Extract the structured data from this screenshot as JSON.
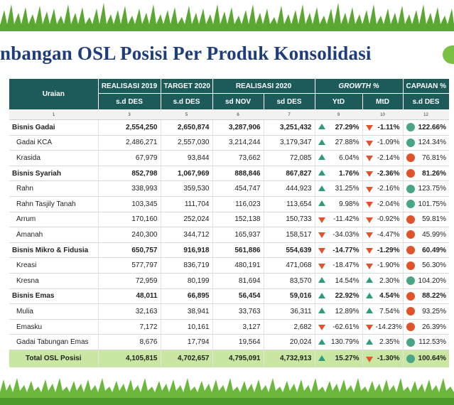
{
  "title": "nbangan OSL Posisi Per Produk Konsolidasi",
  "colors": {
    "header_bg": "#1d5b5b",
    "total_bg": "#c9e7a3",
    "up": "#2e9c7c",
    "down": "#e0532d",
    "grass": "#7ac143"
  },
  "header": {
    "uraian": "Uraian",
    "real2019": "REALISASI 2019",
    "target2020": "TARGET 2020",
    "real2020": "REALISASI  2020",
    "growth": "GROWTH %",
    "capaian": "CAPAIAN %",
    "sd_des_1": "s.d DES",
    "sd_des_2": "s.d DES",
    "sd_nov": "sd NOV",
    "sd_des_3": "sd DES",
    "ytd": "YtD",
    "mtd": "MtD",
    "sd_des_4": "s.d DES"
  },
  "index_row": [
    "1",
    "3",
    "5",
    "6",
    "7",
    "9",
    "10",
    "12"
  ],
  "rows": [
    {
      "name": "Bisnis Gadai",
      "type": "group",
      "r2019": "2,554,250",
      "t2020": "2,650,874",
      "nov": "3,287,906",
      "des": "3,251,432",
      "ytd": "27.29%",
      "ytd_dir": "up",
      "mtd": "-1.11%",
      "mtd_dir": "down",
      "cap": "122.66%",
      "cap_status": "green"
    },
    {
      "name": "Gadai KCA",
      "type": "sub",
      "r2019": "2,486,271",
      "t2020": "2,557,030",
      "nov": "3,214,244",
      "des": "3,179,347",
      "ytd": "27.88%",
      "ytd_dir": "up",
      "mtd": "-1.09%",
      "mtd_dir": "down",
      "cap": "124.34%",
      "cap_status": "green"
    },
    {
      "name": "Krasida",
      "type": "sub",
      "r2019": "67,979",
      "t2020": "93,844",
      "nov": "73,662",
      "des": "72,085",
      "ytd": "6.04%",
      "ytd_dir": "up",
      "mtd": "-2.14%",
      "mtd_dir": "down",
      "cap": "76.81%",
      "cap_status": "red"
    },
    {
      "name": "Bisnis Syariah",
      "type": "group",
      "r2019": "852,798",
      "t2020": "1,067,969",
      "nov": "888,846",
      "des": "867,827",
      "ytd": "1.76%",
      "ytd_dir": "up",
      "mtd": "-2.36%",
      "mtd_dir": "down",
      "cap": "81.26%",
      "cap_status": "red"
    },
    {
      "name": "Rahn",
      "type": "sub",
      "r2019": "338,993",
      "t2020": "359,530",
      "nov": "454,747",
      "des": "444,923",
      "ytd": "31.25%",
      "ytd_dir": "up",
      "mtd": "-2.16%",
      "mtd_dir": "down",
      "cap": "123.75%",
      "cap_status": "green"
    },
    {
      "name": "Rahn Tasjily Tanah",
      "type": "sub",
      "r2019": "103,345",
      "t2020": "111,704",
      "nov": "116,023",
      "des": "113,654",
      "ytd": "9.98%",
      "ytd_dir": "up",
      "mtd": "-2.04%",
      "mtd_dir": "down",
      "cap": "101.75%",
      "cap_status": "green"
    },
    {
      "name": "Arrum",
      "type": "sub",
      "r2019": "170,160",
      "t2020": "252,024",
      "nov": "152,138",
      "des": "150,733",
      "ytd": "-11.42%",
      "ytd_dir": "down",
      "mtd": "-0.92%",
      "mtd_dir": "down",
      "cap": "59.81%",
      "cap_status": "red"
    },
    {
      "name": "Amanah",
      "type": "sub",
      "r2019": "240,300",
      "t2020": "344,712",
      "nov": "165,937",
      "des": "158,517",
      "ytd": "-34.03%",
      "ytd_dir": "down",
      "mtd": "-4.47%",
      "mtd_dir": "down",
      "cap": "45.99%",
      "cap_status": "red"
    },
    {
      "name": "Bisnis Mikro & Fidusia",
      "type": "group",
      "r2019": "650,757",
      "t2020": "916,918",
      "nov": "561,886",
      "des": "554,639",
      "ytd": "-14.77%",
      "ytd_dir": "down",
      "mtd": "-1.29%",
      "mtd_dir": "down",
      "cap": "60.49%",
      "cap_status": "red"
    },
    {
      "name": "Kreasi",
      "type": "sub",
      "r2019": "577,797",
      "t2020": "836,719",
      "nov": "480,191",
      "des": "471,068",
      "ytd": "-18.47%",
      "ytd_dir": "down",
      "mtd": "-1.90%",
      "mtd_dir": "down",
      "cap": "56.30%",
      "cap_status": "red"
    },
    {
      "name": "Kresna",
      "type": "sub",
      "r2019": "72,959",
      "t2020": "80,199",
      "nov": "81,694",
      "des": "83,570",
      "ytd": "14.54%",
      "ytd_dir": "up",
      "mtd": "2.30%",
      "mtd_dir": "up",
      "cap": "104.20%",
      "cap_status": "green"
    },
    {
      "name": "Bisnis Emas",
      "type": "group",
      "r2019": "48,011",
      "t2020": "66,895",
      "nov": "56,454",
      "des": "59,016",
      "ytd": "22.92%",
      "ytd_dir": "up",
      "mtd": "4.54%",
      "mtd_dir": "up",
      "cap": "88.22%",
      "cap_status": "red"
    },
    {
      "name": "Mulia",
      "type": "sub",
      "r2019": "32,163",
      "t2020": "38,941",
      "nov": "33,763",
      "des": "36,311",
      "ytd": "12.89%",
      "ytd_dir": "up",
      "mtd": "7.54%",
      "mtd_dir": "up",
      "cap": "93.25%",
      "cap_status": "red"
    },
    {
      "name": "Emasku",
      "type": "sub",
      "r2019": "7,172",
      "t2020": "10,161",
      "nov": "3,127",
      "des": "2,682",
      "ytd": "-62.61%",
      "ytd_dir": "down",
      "mtd": "-14.23%",
      "mtd_dir": "down",
      "cap": "26.39%",
      "cap_status": "red"
    },
    {
      "name": "Gadai Tabungan Emas",
      "type": "sub",
      "r2019": "8,676",
      "t2020": "17,794",
      "nov": "19,564",
      "des": "20,024",
      "ytd": "130.79%",
      "ytd_dir": "up",
      "mtd": "2.35%",
      "mtd_dir": "up",
      "cap": "112.53%",
      "cap_status": "green"
    },
    {
      "name": "Total OSL Posisi",
      "type": "total",
      "r2019": "4,105,815",
      "t2020": "4,702,657",
      "nov": "4,795,091",
      "des": "4,732,913",
      "ytd": "15.27%",
      "ytd_dir": "up",
      "mtd": "-1.30%",
      "mtd_dir": "down",
      "cap": "100.64%",
      "cap_status": "green"
    }
  ]
}
